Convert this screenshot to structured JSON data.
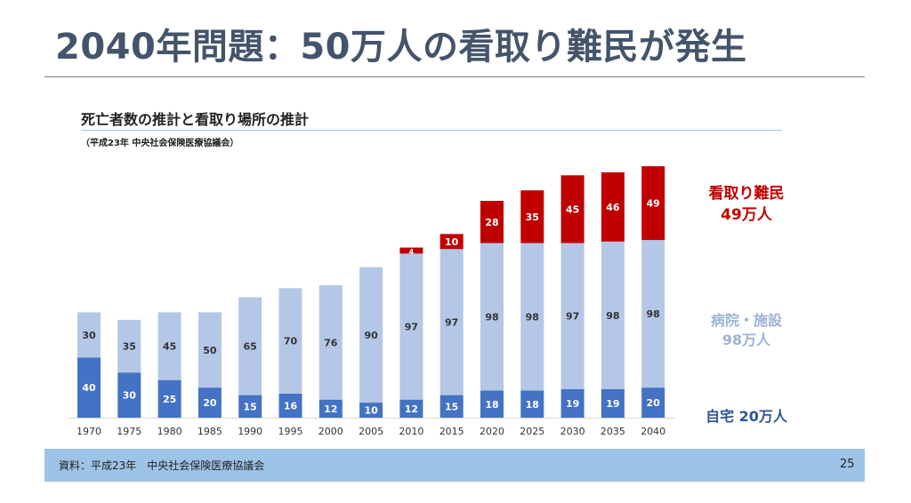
{
  "slide": {
    "title": "2040年問題：50万人の看取り難民が発生",
    "footer_source": "資料：平成23年　中央社会保険医療協議会",
    "page_number": "25"
  },
  "chart_data": {
    "type": "bar",
    "stacked": true,
    "title": "死亡者数の推計と看取り場所の推計",
    "subtitle": "（平成23年 中央社会保険医療協議会）",
    "xlabel": "",
    "ylabel": "",
    "ylim": [
      0,
      170
    ],
    "categories": [
      "1970",
      "1975",
      "1980",
      "1985",
      "1990",
      "1995",
      "2000",
      "2005",
      "2010",
      "2015",
      "2020",
      "2025",
      "2030",
      "2035",
      "2040"
    ],
    "series": [
      {
        "name": "自宅",
        "color": "#4472c4",
        "values": [
          40,
          30,
          25,
          20,
          15,
          16,
          12,
          10,
          12,
          15,
          18,
          18,
          19,
          19,
          20
        ]
      },
      {
        "name": "病院・施設",
        "color": "#b4c7e7",
        "values": [
          30,
          35,
          45,
          50,
          65,
          70,
          76,
          90,
          97,
          97,
          98,
          98,
          97,
          98,
          98
        ]
      },
      {
        "name": "看取り難民",
        "color": "#c00000",
        "values": [
          0,
          0,
          0,
          0,
          0,
          0,
          0,
          0,
          4,
          10,
          28,
          35,
          45,
          46,
          49
        ]
      }
    ],
    "legend_labels": {
      "home": "自宅 20万人",
      "hospital_line1": "病院・施設",
      "hospital_line2": "98万人",
      "refugee_line1": "看取り難民",
      "refugee_line2": "49万人"
    },
    "grid": false,
    "legend": "right"
  }
}
